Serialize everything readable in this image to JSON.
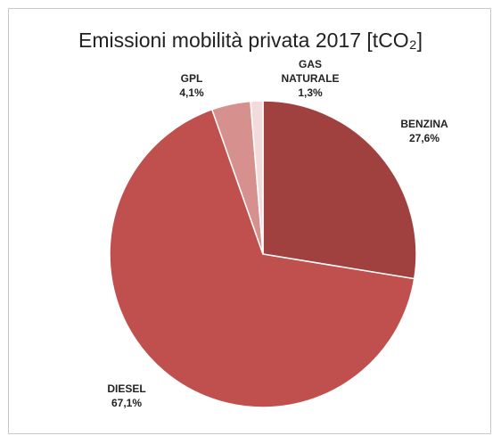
{
  "chart_data": {
    "type": "pie",
    "title": "Emissioni mobilità privata 2017 [tCO₂]",
    "categories": [
      "BENZINA",
      "DIESEL",
      "GPL",
      "GAS NATURALE"
    ],
    "values": [
      27.6,
      67.1,
      4.1,
      1.3
    ],
    "value_labels": [
      "27,6%",
      "67,1%",
      "4,1%",
      "1,3%"
    ],
    "colors": [
      "#a0403f",
      "#c0504d",
      "#d6908e",
      "#f2dcdb"
    ]
  }
}
